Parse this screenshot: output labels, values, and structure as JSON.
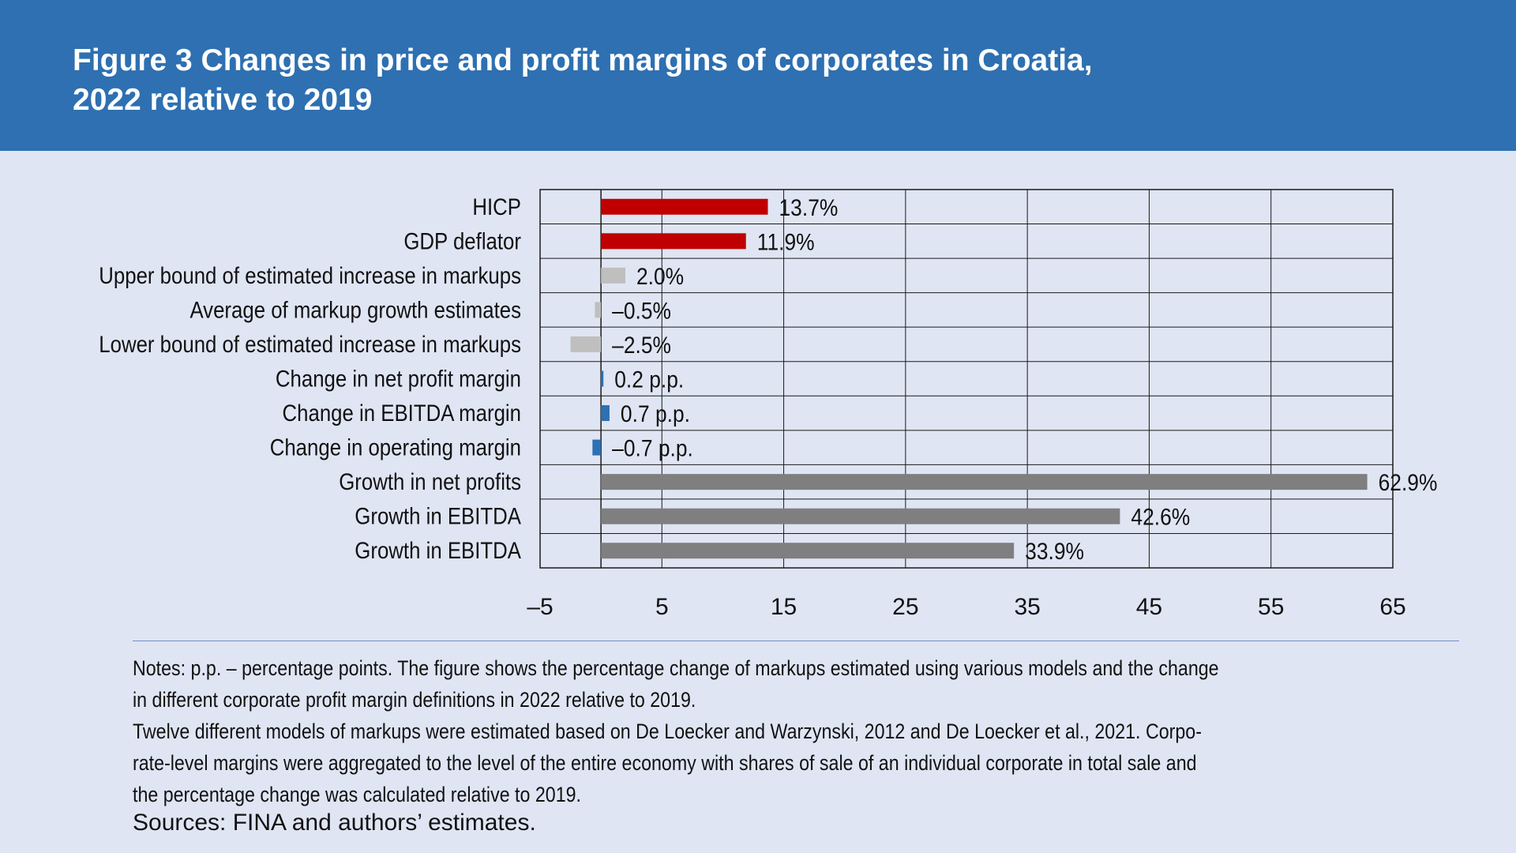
{
  "figure": {
    "title_line1": "Figure 3 Changes in price and profit margins of corporates in Croatia,",
    "title_line2": "2022 relative to 2019"
  },
  "chart_data": {
    "type": "bar",
    "orientation": "horizontal",
    "categories": [
      "HICP",
      "GDP deflator",
      "Upper bound of estimated increase in markups",
      "Average of markup growth estimates",
      "Lower bound of estimated increase in markups",
      "Change in net profit margin",
      "Change in EBITDA margin",
      "Change in operating margin",
      "Growth in net profits",
      "Growth in EBITDA",
      "Growth in EBITDA"
    ],
    "values": [
      13.7,
      11.9,
      2.0,
      -0.5,
      -2.5,
      0.2,
      0.7,
      -0.7,
      62.9,
      42.6,
      33.9
    ],
    "data_labels": [
      "13.7%",
      "11.9%",
      "2.0%",
      "–0.5%",
      "–2.5%",
      "0.2 p.p.",
      "0.7 p.p.",
      "–0.7 p.p.",
      "62.9%",
      "42.6%",
      "33.9%"
    ],
    "colors": [
      "#c00000",
      "#c00000",
      "#bfbfbf",
      "#bfbfbf",
      "#bfbfbf",
      "#2e70b1",
      "#2e70b1",
      "#2e70b1",
      "#7f7f7f",
      "#7f7f7f",
      "#7f7f7f"
    ],
    "x_ticks": [
      -5,
      5,
      15,
      25,
      35,
      45,
      55,
      65
    ],
    "x_tick_labels": [
      "–5",
      "5",
      "15",
      "25",
      "35",
      "45",
      "55",
      "65"
    ],
    "xlim": [
      -5,
      65
    ],
    "grid": true,
    "xlabel": "",
    "ylabel": ""
  },
  "notes": {
    "line1": "Notes: p.p. – percentage points. The figure shows the percentage change of markups estimated using various models and the change",
    "line2": "in different corporate profit margin definitions in 2022 relative to 2019.",
    "line3": "Twelve different models of markups were estimated based on De Loecker and Warzynski, 2012 and De Loecker et al., 2021. Corpo-",
    "line4": "rate-level margins were aggregated to the level of the entire economy with shares of sale of an individual corporate in total sale and",
    "line5": "the percentage change was calculated relative to 2019."
  },
  "sources": "Sources: FINA and authors’ estimates."
}
